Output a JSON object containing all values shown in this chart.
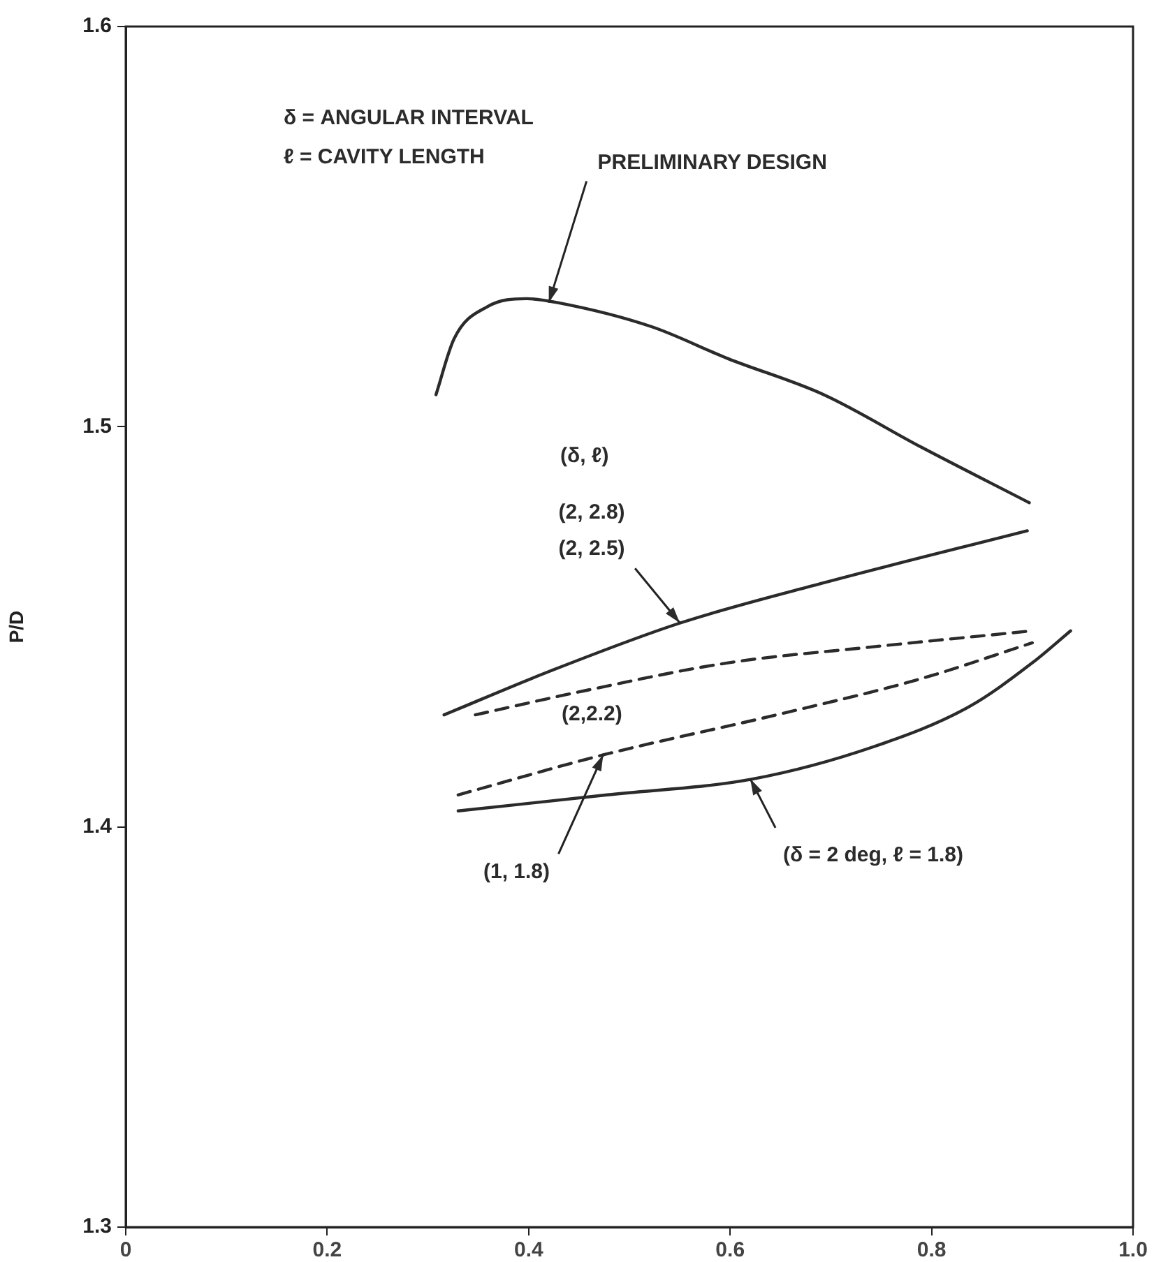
{
  "chart_data": {
    "type": "line",
    "ylabel": "P/D",
    "xlim": [
      0,
      1.0
    ],
    "ylim": [
      1.3,
      1.6
    ],
    "xticks": [
      0,
      0.2,
      0.4,
      0.6,
      0.8,
      {
        "value": 1.0,
        "label": "1.0"
      }
    ],
    "yticks": [
      1.3,
      1.4,
      1.5,
      1.6
    ],
    "grid": false,
    "legend": false,
    "marker": "none",
    "series": [
      {
        "color": "#2b2b2b",
        "line_style": "solid",
        "x": [
          0.308,
          0.326,
          0.359,
          0.398,
          0.429,
          0.522,
          0.598,
          0.693,
          0.789,
          0.897
        ],
        "values": [
          1.508,
          1.522,
          1.53,
          1.532,
          1.531,
          1.525,
          1.517,
          1.508,
          1.495,
          1.481
        ]
      },
      {
        "color": "#2b2b2b",
        "line_style": "solid",
        "x": [
          0.316,
          0.422,
          0.551,
          0.693,
          0.895
        ],
        "values": [
          1.428,
          1.439,
          1.451,
          1.461,
          1.474
        ]
      },
      {
        "color": "#2b2b2b",
        "line_style": "dashed",
        "x": [
          0.347,
          0.455,
          0.598,
          0.742,
          0.9
        ],
        "values": [
          1.428,
          1.434,
          1.441,
          1.445,
          1.449
        ]
      },
      {
        "color": "#2b2b2b",
        "line_style": "dashed",
        "x": [
          0.33,
          0.474,
          0.646,
          0.789,
          0.9
        ],
        "values": [
          1.408,
          1.418,
          1.428,
          1.437,
          1.446
        ]
      },
      {
        "color": "#2b2b2b",
        "line_style": "solid",
        "x": [
          0.33,
          0.478,
          0.623,
          0.742,
          0.837,
          0.9,
          0.938
        ],
        "values": [
          1.404,
          1.408,
          1.412,
          1.42,
          1.43,
          1.441,
          1.449
        ]
      }
    ],
    "annotations": [
      "δ = ANGULAR INTERVAL",
      "ℓ = CAVITY LENGTH",
      "(δ, ℓ)",
      {
        "text": "PRELIMINARY DESIGN",
        "x": 0.42,
        "y": 1.531
      },
      {
        "text": "(2, 2.8)\n(2, 2.5)",
        "x": 0.55,
        "y": 1.451
      },
      "(2,2.2)",
      {
        "text": "(1, 1.8)",
        "x": 0.474,
        "y": 1.418
      },
      {
        "text": "(δ = 2 deg, ℓ = 1.8)",
        "x": 0.62,
        "y": 1.412
      }
    ]
  }
}
